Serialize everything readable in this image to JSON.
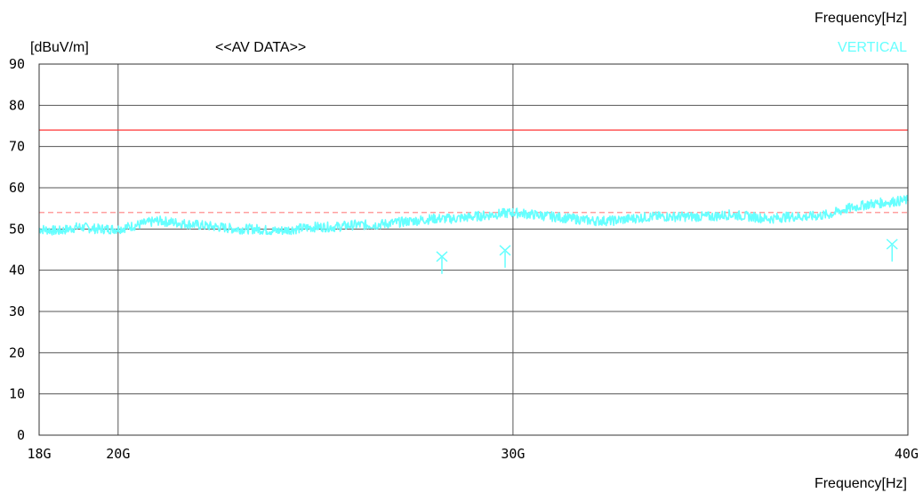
{
  "chart_data": {
    "type": "line",
    "title": "<<AV DATA>>",
    "ylabel": "[dBuV/m]",
    "xlabel_top": "Frequency[Hz]",
    "xlabel_bottom": "Frequency[Hz]",
    "xlim": [
      18,
      40
    ],
    "ylim": [
      0,
      90
    ],
    "grid": true,
    "x_ticks": [
      {
        "value": 18,
        "label": "18G"
      },
      {
        "value": 20,
        "label": "20G"
      },
      {
        "value": 30,
        "label": "30G"
      },
      {
        "value": 40,
        "label": "40G"
      }
    ],
    "y_ticks": [
      0,
      10,
      20,
      30,
      40,
      50,
      60,
      70,
      80,
      90
    ],
    "legend": {
      "placement": "top-right",
      "entries": [
        "VERTICAL"
      ]
    },
    "series": [
      {
        "name": "VERTICAL",
        "color": "#66ffff",
        "x": [
          18.0,
          18.5,
          19.0,
          19.5,
          20.0,
          20.5,
          21.0,
          21.5,
          22.0,
          22.5,
          23.0,
          23.5,
          24.0,
          24.5,
          25.0,
          25.5,
          26.0,
          26.5,
          27.0,
          27.5,
          28.0,
          28.5,
          29.0,
          29.5,
          30.0,
          30.5,
          31.0,
          31.5,
          32.0,
          32.5,
          33.0,
          33.5,
          34.0,
          34.5,
          35.0,
          35.5,
          36.0,
          36.5,
          37.0,
          37.5,
          38.0,
          38.5,
          39.0,
          39.5,
          40.0
        ],
        "values": [
          50.0,
          49.5,
          50.5,
          50.0,
          50.0,
          51.0,
          52.0,
          51.5,
          51.0,
          50.5,
          50.0,
          50.0,
          49.5,
          50.0,
          50.5,
          50.5,
          51.0,
          51.0,
          51.5,
          52.0,
          52.5,
          52.5,
          53.0,
          53.5,
          54.0,
          53.5,
          53.0,
          52.5,
          52.0,
          52.0,
          52.5,
          53.0,
          53.0,
          53.0,
          53.0,
          53.5,
          53.0,
          52.5,
          53.0,
          53.0,
          53.5,
          55.0,
          56.0,
          56.5,
          57.0
        ]
      }
    ],
    "limit_lines": [
      {
        "value": 74,
        "color": "#ff3333",
        "style": "solid"
      },
      {
        "value": 54,
        "color": "#ff8080",
        "style": "dashed"
      }
    ],
    "markers": [
      {
        "x": 28.2,
        "y": 43
      },
      {
        "x": 29.8,
        "y": 44.5
      },
      {
        "x": 39.6,
        "y": 46
      }
    ]
  }
}
